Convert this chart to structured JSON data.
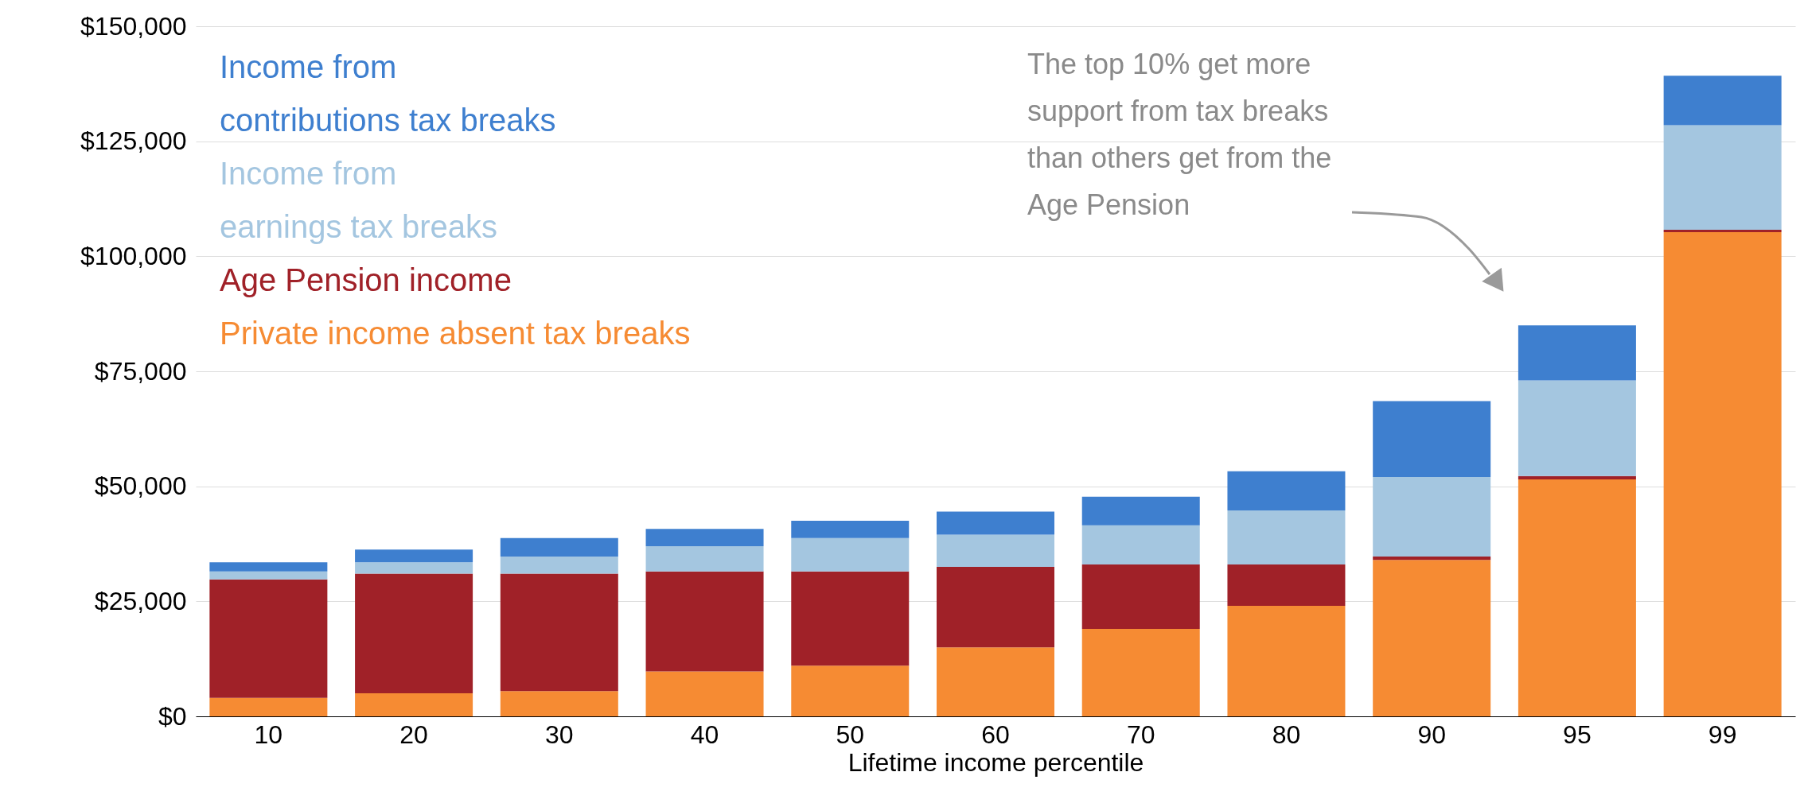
{
  "chart_data": {
    "type": "bar",
    "stacked": true,
    "xlabel": "Lifetime income percentile",
    "categories": [
      "10",
      "20",
      "30",
      "40",
      "50",
      "60",
      "70",
      "80",
      "90",
      "95",
      "99"
    ],
    "series": [
      {
        "name": "Private income absent tax breaks",
        "color": "#f68b33",
        "values": [
          4000,
          5000,
          5500,
          9750,
          11000,
          15000,
          19000,
          24000,
          34000,
          51500,
          105250
        ]
      },
      {
        "name": "Age Pension income",
        "color": "#a02128",
        "values": [
          25750,
          26000,
          25500,
          21750,
          20500,
          17500,
          14000,
          9000,
          750,
          750,
          500
        ]
      },
      {
        "name": "Income from\nearnings tax breaks",
        "color": "#a4c6e0",
        "values": [
          1750,
          2500,
          3750,
          5500,
          7250,
          7000,
          8500,
          11750,
          17250,
          20750,
          22750
        ]
      },
      {
        "name": "Income from\ncontributions tax breaks",
        "color": "#3e7fcf",
        "values": [
          2000,
          2750,
          4000,
          3750,
          3750,
          5000,
          6250,
          8500,
          16500,
          12000,
          10750
        ]
      }
    ],
    "ylim": [
      0,
      150000
    ],
    "yticks": [
      {
        "value": 0,
        "label": "$0"
      },
      {
        "value": 25000,
        "label": "$25,000"
      },
      {
        "value": 50000,
        "label": "$50,000"
      },
      {
        "value": 75000,
        "label": "$75,000"
      },
      {
        "value": 100000,
        "label": "$100,000"
      },
      {
        "value": 125000,
        "label": "$125,000"
      },
      {
        "value": 150000,
        "label": "$150,000"
      }
    ],
    "grid": "y",
    "legend": "top left",
    "annotations": [
      "The top 10% get more\nsupport from tax breaks\nthan others get from the\nAge Pension"
    ]
  }
}
